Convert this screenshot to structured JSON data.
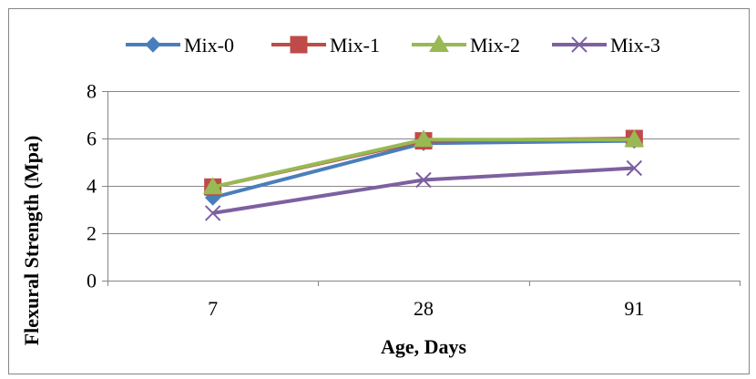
{
  "chart_data": {
    "type": "line",
    "title": "",
    "xlabel": "Age, Days",
    "ylabel": "Flexural  Strength (Mpa)",
    "categories": [
      "7",
      "28",
      "91"
    ],
    "ylim": [
      0,
      8
    ],
    "yticks": [
      "0",
      "2",
      "4",
      "6",
      "8"
    ],
    "grid": true,
    "legend": "top",
    "series": [
      {
        "name": "Mix-0",
        "values": [
          3.5,
          5.8,
          5.9
        ],
        "color": "#4a7ebb",
        "marker": "diamond"
      },
      {
        "name": "Mix-1",
        "values": [
          3.95,
          5.9,
          6.0
        ],
        "color": "#be4b48",
        "marker": "square"
      },
      {
        "name": "Mix-2",
        "values": [
          3.95,
          5.95,
          5.95
        ],
        "color": "#98b954",
        "marker": "triangle"
      },
      {
        "name": "Mix-3",
        "values": [
          2.85,
          4.25,
          4.75
        ],
        "color": "#7d60a0",
        "marker": "x"
      }
    ]
  }
}
